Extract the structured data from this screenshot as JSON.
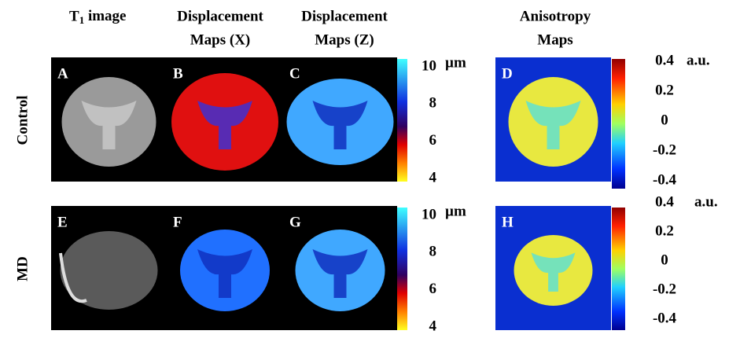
{
  "headers": [
    {
      "lines": [
        "T"
      ],
      "subscript": "1",
      "rest": " image"
    },
    {
      "lines": [
        "Displacement",
        "Maps (X)"
      ]
    },
    {
      "lines": [
        "Displacement",
        "Maps (Z)"
      ]
    },
    {
      "lines": [
        "Anisotropy",
        "Maps"
      ]
    }
  ],
  "rows": [
    {
      "label": "Control",
      "panels": [
        "A",
        "B",
        "C",
        "D"
      ],
      "displacement_scale": {
        "ticks": [
          "10",
          "8",
          "6",
          "4"
        ],
        "unit": "µm"
      },
      "anisotropy_scale": {
        "ticks": [
          "0.4",
          "0.2",
          "0",
          "-0.2",
          "-0.4"
        ],
        "unit": "a.u."
      }
    },
    {
      "label": "MD",
      "panels": [
        "E",
        "F",
        "G",
        "H"
      ],
      "displacement_scale": {
        "ticks": [
          "10",
          "8",
          "6",
          "4"
        ],
        "unit": "µm"
      },
      "anisotropy_scale": {
        "ticks": [
          "0.4",
          "0.2",
          "0",
          "-0.2",
          "-0.4"
        ],
        "unit": "a.u."
      }
    }
  ]
}
